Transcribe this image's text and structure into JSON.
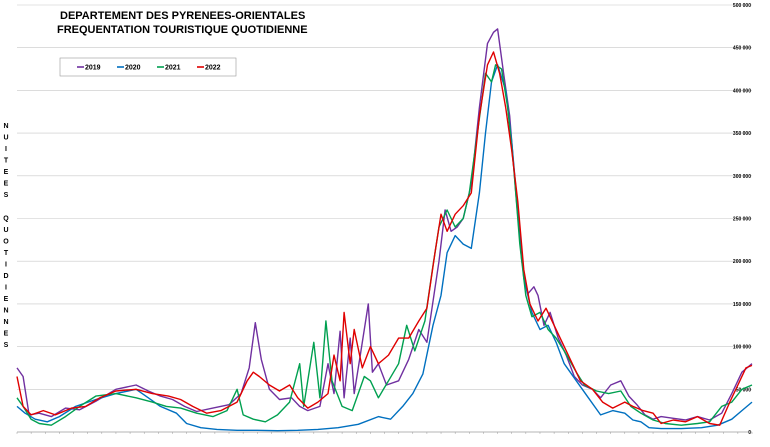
{
  "chart_data": {
    "type": "line",
    "title": [
      "DEPARTEMENT DES PYRENEES-ORIENTALES",
      "FREQUENTATION TOURISTIQUE QUOTIDIENNE"
    ],
    "ylabel": "NUITEES QUOTIDIENNES",
    "xlabel": "",
    "ylim": [
      0,
      500000
    ],
    "yticks": [
      0,
      50000,
      100000,
      150000,
      200000,
      250000,
      300000,
      350000,
      400000,
      450000,
      500000
    ],
    "ytick_labels": [
      "0",
      "50 000",
      "100 000",
      "150 000",
      "200 000",
      "250 000",
      "300 000",
      "350 000",
      "400 000",
      "450 000",
      "500 000"
    ],
    "grid": true,
    "legend": "top-left",
    "x_day_range": [
      1,
      365
    ],
    "series": [
      {
        "name": "2019",
        "color": "#7030A0",
        "points": [
          [
            1,
            75000
          ],
          [
            4,
            65000
          ],
          [
            7,
            20000
          ],
          [
            12,
            22000
          ],
          [
            18,
            18000
          ],
          [
            25,
            28000
          ],
          [
            32,
            26000
          ],
          [
            40,
            36000
          ],
          [
            50,
            50000
          ],
          [
            60,
            55000
          ],
          [
            66,
            48000
          ],
          [
            72,
            42000
          ],
          [
            78,
            38000
          ],
          [
            84,
            30000
          ],
          [
            90,
            24000
          ],
          [
            98,
            28000
          ],
          [
            106,
            32000
          ],
          [
            112,
            45000
          ],
          [
            116,
            75000
          ],
          [
            119,
            128000
          ],
          [
            122,
            85000
          ],
          [
            126,
            50000
          ],
          [
            131,
            38000
          ],
          [
            137,
            40000
          ],
          [
            141,
            30000
          ],
          [
            145,
            25000
          ],
          [
            151,
            30000
          ],
          [
            155,
            80000
          ],
          [
            158,
            45000
          ],
          [
            161,
            118000
          ],
          [
            163,
            40000
          ],
          [
            166,
            110000
          ],
          [
            168,
            45000
          ],
          [
            171,
            90000
          ],
          [
            175,
            150000
          ],
          [
            177,
            70000
          ],
          [
            180,
            80000
          ],
          [
            184,
            55000
          ],
          [
            190,
            60000
          ],
          [
            195,
            85000
          ],
          [
            200,
            120000
          ],
          [
            204,
            105000
          ],
          [
            210,
            200000
          ],
          [
            213,
            260000
          ],
          [
            216,
            235000
          ],
          [
            219,
            240000
          ],
          [
            222,
            250000
          ],
          [
            226,
            290000
          ],
          [
            230,
            380000
          ],
          [
            234,
            455000
          ],
          [
            237,
            468000
          ],
          [
            239,
            472000
          ],
          [
            242,
            420000
          ],
          [
            245,
            370000
          ],
          [
            248,
            280000
          ],
          [
            251,
            200000
          ],
          [
            254,
            162000
          ],
          [
            257,
            170000
          ],
          [
            259,
            160000
          ],
          [
            262,
            125000
          ],
          [
            265,
            140000
          ],
          [
            269,
            110000
          ],
          [
            273,
            90000
          ],
          [
            277,
            65000
          ],
          [
            281,
            55000
          ],
          [
            286,
            50000
          ],
          [
            290,
            40000
          ],
          [
            295,
            55000
          ],
          [
            300,
            60000
          ],
          [
            304,
            42000
          ],
          [
            308,
            32000
          ],
          [
            312,
            20000
          ],
          [
            316,
            15000
          ],
          [
            320,
            18000
          ],
          [
            326,
            16000
          ],
          [
            332,
            14000
          ],
          [
            338,
            18000
          ],
          [
            344,
            14000
          ],
          [
            350,
            22000
          ],
          [
            355,
            45000
          ],
          [
            360,
            70000
          ],
          [
            365,
            80000
          ]
        ]
      },
      {
        "name": "2020",
        "color": "#0070C0",
        "points": [
          [
            1,
            30000
          ],
          [
            5,
            22000
          ],
          [
            10,
            15000
          ],
          [
            16,
            12000
          ],
          [
            22,
            18000
          ],
          [
            30,
            30000
          ],
          [
            40,
            38000
          ],
          [
            50,
            45000
          ],
          [
            60,
            50000
          ],
          [
            66,
            40000
          ],
          [
            72,
            30000
          ],
          [
            80,
            22000
          ],
          [
            85,
            10000
          ],
          [
            92,
            5000
          ],
          [
            100,
            3000
          ],
          [
            110,
            2000
          ],
          [
            120,
            2000
          ],
          [
            130,
            1500
          ],
          [
            140,
            2000
          ],
          [
            150,
            3000
          ],
          [
            160,
            5000
          ],
          [
            170,
            9000
          ],
          [
            180,
            18000
          ],
          [
            186,
            15000
          ],
          [
            192,
            30000
          ],
          [
            197,
            45000
          ],
          [
            202,
            68000
          ],
          [
            207,
            125000
          ],
          [
            211,
            160000
          ],
          [
            214,
            210000
          ],
          [
            218,
            230000
          ],
          [
            222,
            220000
          ],
          [
            226,
            215000
          ],
          [
            230,
            280000
          ],
          [
            233,
            350000
          ],
          [
            236,
            410000
          ],
          [
            239,
            430000
          ],
          [
            243,
            400000
          ],
          [
            246,
            340000
          ],
          [
            249,
            260000
          ],
          [
            252,
            180000
          ],
          [
            256,
            140000
          ],
          [
            260,
            120000
          ],
          [
            264,
            125000
          ],
          [
            268,
            105000
          ],
          [
            272,
            80000
          ],
          [
            278,
            60000
          ],
          [
            284,
            40000
          ],
          [
            290,
            20000
          ],
          [
            296,
            25000
          ],
          [
            302,
            22000
          ],
          [
            306,
            14000
          ],
          [
            310,
            12000
          ],
          [
            314,
            5000
          ],
          [
            320,
            4000
          ],
          [
            330,
            4000
          ],
          [
            340,
            5000
          ],
          [
            348,
            8000
          ],
          [
            355,
            15000
          ],
          [
            360,
            25000
          ],
          [
            365,
            35000
          ]
        ]
      },
      {
        "name": "2021",
        "color": "#00A050",
        "points": [
          [
            1,
            40000
          ],
          [
            4,
            30000
          ],
          [
            8,
            15000
          ],
          [
            12,
            10000
          ],
          [
            18,
            8000
          ],
          [
            25,
            18000
          ],
          [
            32,
            30000
          ],
          [
            40,
            42000
          ],
          [
            50,
            45000
          ],
          [
            60,
            40000
          ],
          [
            68,
            35000
          ],
          [
            75,
            30000
          ],
          [
            82,
            28000
          ],
          [
            90,
            22000
          ],
          [
            98,
            18000
          ],
          [
            105,
            25000
          ],
          [
            110,
            50000
          ],
          [
            113,
            20000
          ],
          [
            118,
            15000
          ],
          [
            124,
            12000
          ],
          [
            130,
            20000
          ],
          [
            136,
            35000
          ],
          [
            141,
            80000
          ],
          [
            143,
            30000
          ],
          [
            148,
            105000
          ],
          [
            151,
            40000
          ],
          [
            154,
            130000
          ],
          [
            157,
            60000
          ],
          [
            162,
            30000
          ],
          [
            167,
            25000
          ],
          [
            173,
            65000
          ],
          [
            176,
            60000
          ],
          [
            180,
            40000
          ],
          [
            185,
            60000
          ],
          [
            190,
            80000
          ],
          [
            194,
            125000
          ],
          [
            198,
            95000
          ],
          [
            203,
            130000
          ],
          [
            207,
            195000
          ],
          [
            210,
            240000
          ],
          [
            214,
            260000
          ],
          [
            218,
            240000
          ],
          [
            222,
            250000
          ],
          [
            225,
            280000
          ],
          [
            229,
            350000
          ],
          [
            233,
            420000
          ],
          [
            236,
            410000
          ],
          [
            238,
            430000
          ],
          [
            241,
            425000
          ],
          [
            244,
            380000
          ],
          [
            247,
            310000
          ],
          [
            250,
            220000
          ],
          [
            253,
            160000
          ],
          [
            256,
            135000
          ],
          [
            260,
            140000
          ],
          [
            264,
            120000
          ],
          [
            268,
            110000
          ],
          [
            272,
            95000
          ],
          [
            278,
            70000
          ],
          [
            282,
            55000
          ],
          [
            288,
            48000
          ],
          [
            294,
            45000
          ],
          [
            300,
            48000
          ],
          [
            305,
            30000
          ],
          [
            310,
            22000
          ],
          [
            316,
            14000
          ],
          [
            322,
            10000
          ],
          [
            330,
            8000
          ],
          [
            338,
            10000
          ],
          [
            344,
            12000
          ],
          [
            350,
            30000
          ],
          [
            355,
            35000
          ],
          [
            360,
            50000
          ],
          [
            365,
            55000
          ]
        ]
      },
      {
        "name": "2022",
        "color": "#E00000",
        "points": [
          [
            1,
            65000
          ],
          [
            4,
            30000
          ],
          [
            8,
            20000
          ],
          [
            14,
            25000
          ],
          [
            20,
            20000
          ],
          [
            28,
            28000
          ],
          [
            35,
            30000
          ],
          [
            42,
            40000
          ],
          [
            50,
            48000
          ],
          [
            60,
            50000
          ],
          [
            68,
            45000
          ],
          [
            76,
            42000
          ],
          [
            82,
            38000
          ],
          [
            88,
            30000
          ],
          [
            95,
            22000
          ],
          [
            102,
            25000
          ],
          [
            110,
            35000
          ],
          [
            115,
            60000
          ],
          [
            118,
            70000
          ],
          [
            121,
            65000
          ],
          [
            126,
            55000
          ],
          [
            131,
            48000
          ],
          [
            136,
            55000
          ],
          [
            140,
            40000
          ],
          [
            145,
            28000
          ],
          [
            150,
            35000
          ],
          [
            155,
            45000
          ],
          [
            158,
            90000
          ],
          [
            161,
            60000
          ],
          [
            163,
            140000
          ],
          [
            166,
            80000
          ],
          [
            168,
            120000
          ],
          [
            172,
            75000
          ],
          [
            176,
            100000
          ],
          [
            180,
            80000
          ],
          [
            185,
            90000
          ],
          [
            190,
            110000
          ],
          [
            195,
            110000
          ],
          [
            200,
            130000
          ],
          [
            204,
            145000
          ],
          [
            208,
            210000
          ],
          [
            211,
            255000
          ],
          [
            214,
            235000
          ],
          [
            218,
            255000
          ],
          [
            222,
            265000
          ],
          [
            226,
            280000
          ],
          [
            230,
            370000
          ],
          [
            234,
            430000
          ],
          [
            237,
            445000
          ],
          [
            240,
            420000
          ],
          [
            243,
            380000
          ],
          [
            246,
            330000
          ],
          [
            249,
            270000
          ],
          [
            252,
            190000
          ],
          [
            255,
            150000
          ],
          [
            259,
            130000
          ],
          [
            263,
            145000
          ],
          [
            267,
            125000
          ],
          [
            271,
            105000
          ],
          [
            276,
            80000
          ],
          [
            280,
            60000
          ],
          [
            286,
            50000
          ],
          [
            291,
            35000
          ],
          [
            296,
            28000
          ],
          [
            302,
            35000
          ],
          [
            306,
            30000
          ],
          [
            311,
            25000
          ],
          [
            316,
            22000
          ],
          [
            320,
            10000
          ],
          [
            326,
            14000
          ],
          [
            332,
            12000
          ],
          [
            338,
            18000
          ],
          [
            344,
            10000
          ],
          [
            349,
            8000
          ],
          [
            354,
            35000
          ],
          [
            358,
            55000
          ],
          [
            362,
            75000
          ],
          [
            365,
            78000
          ]
        ]
      }
    ]
  }
}
